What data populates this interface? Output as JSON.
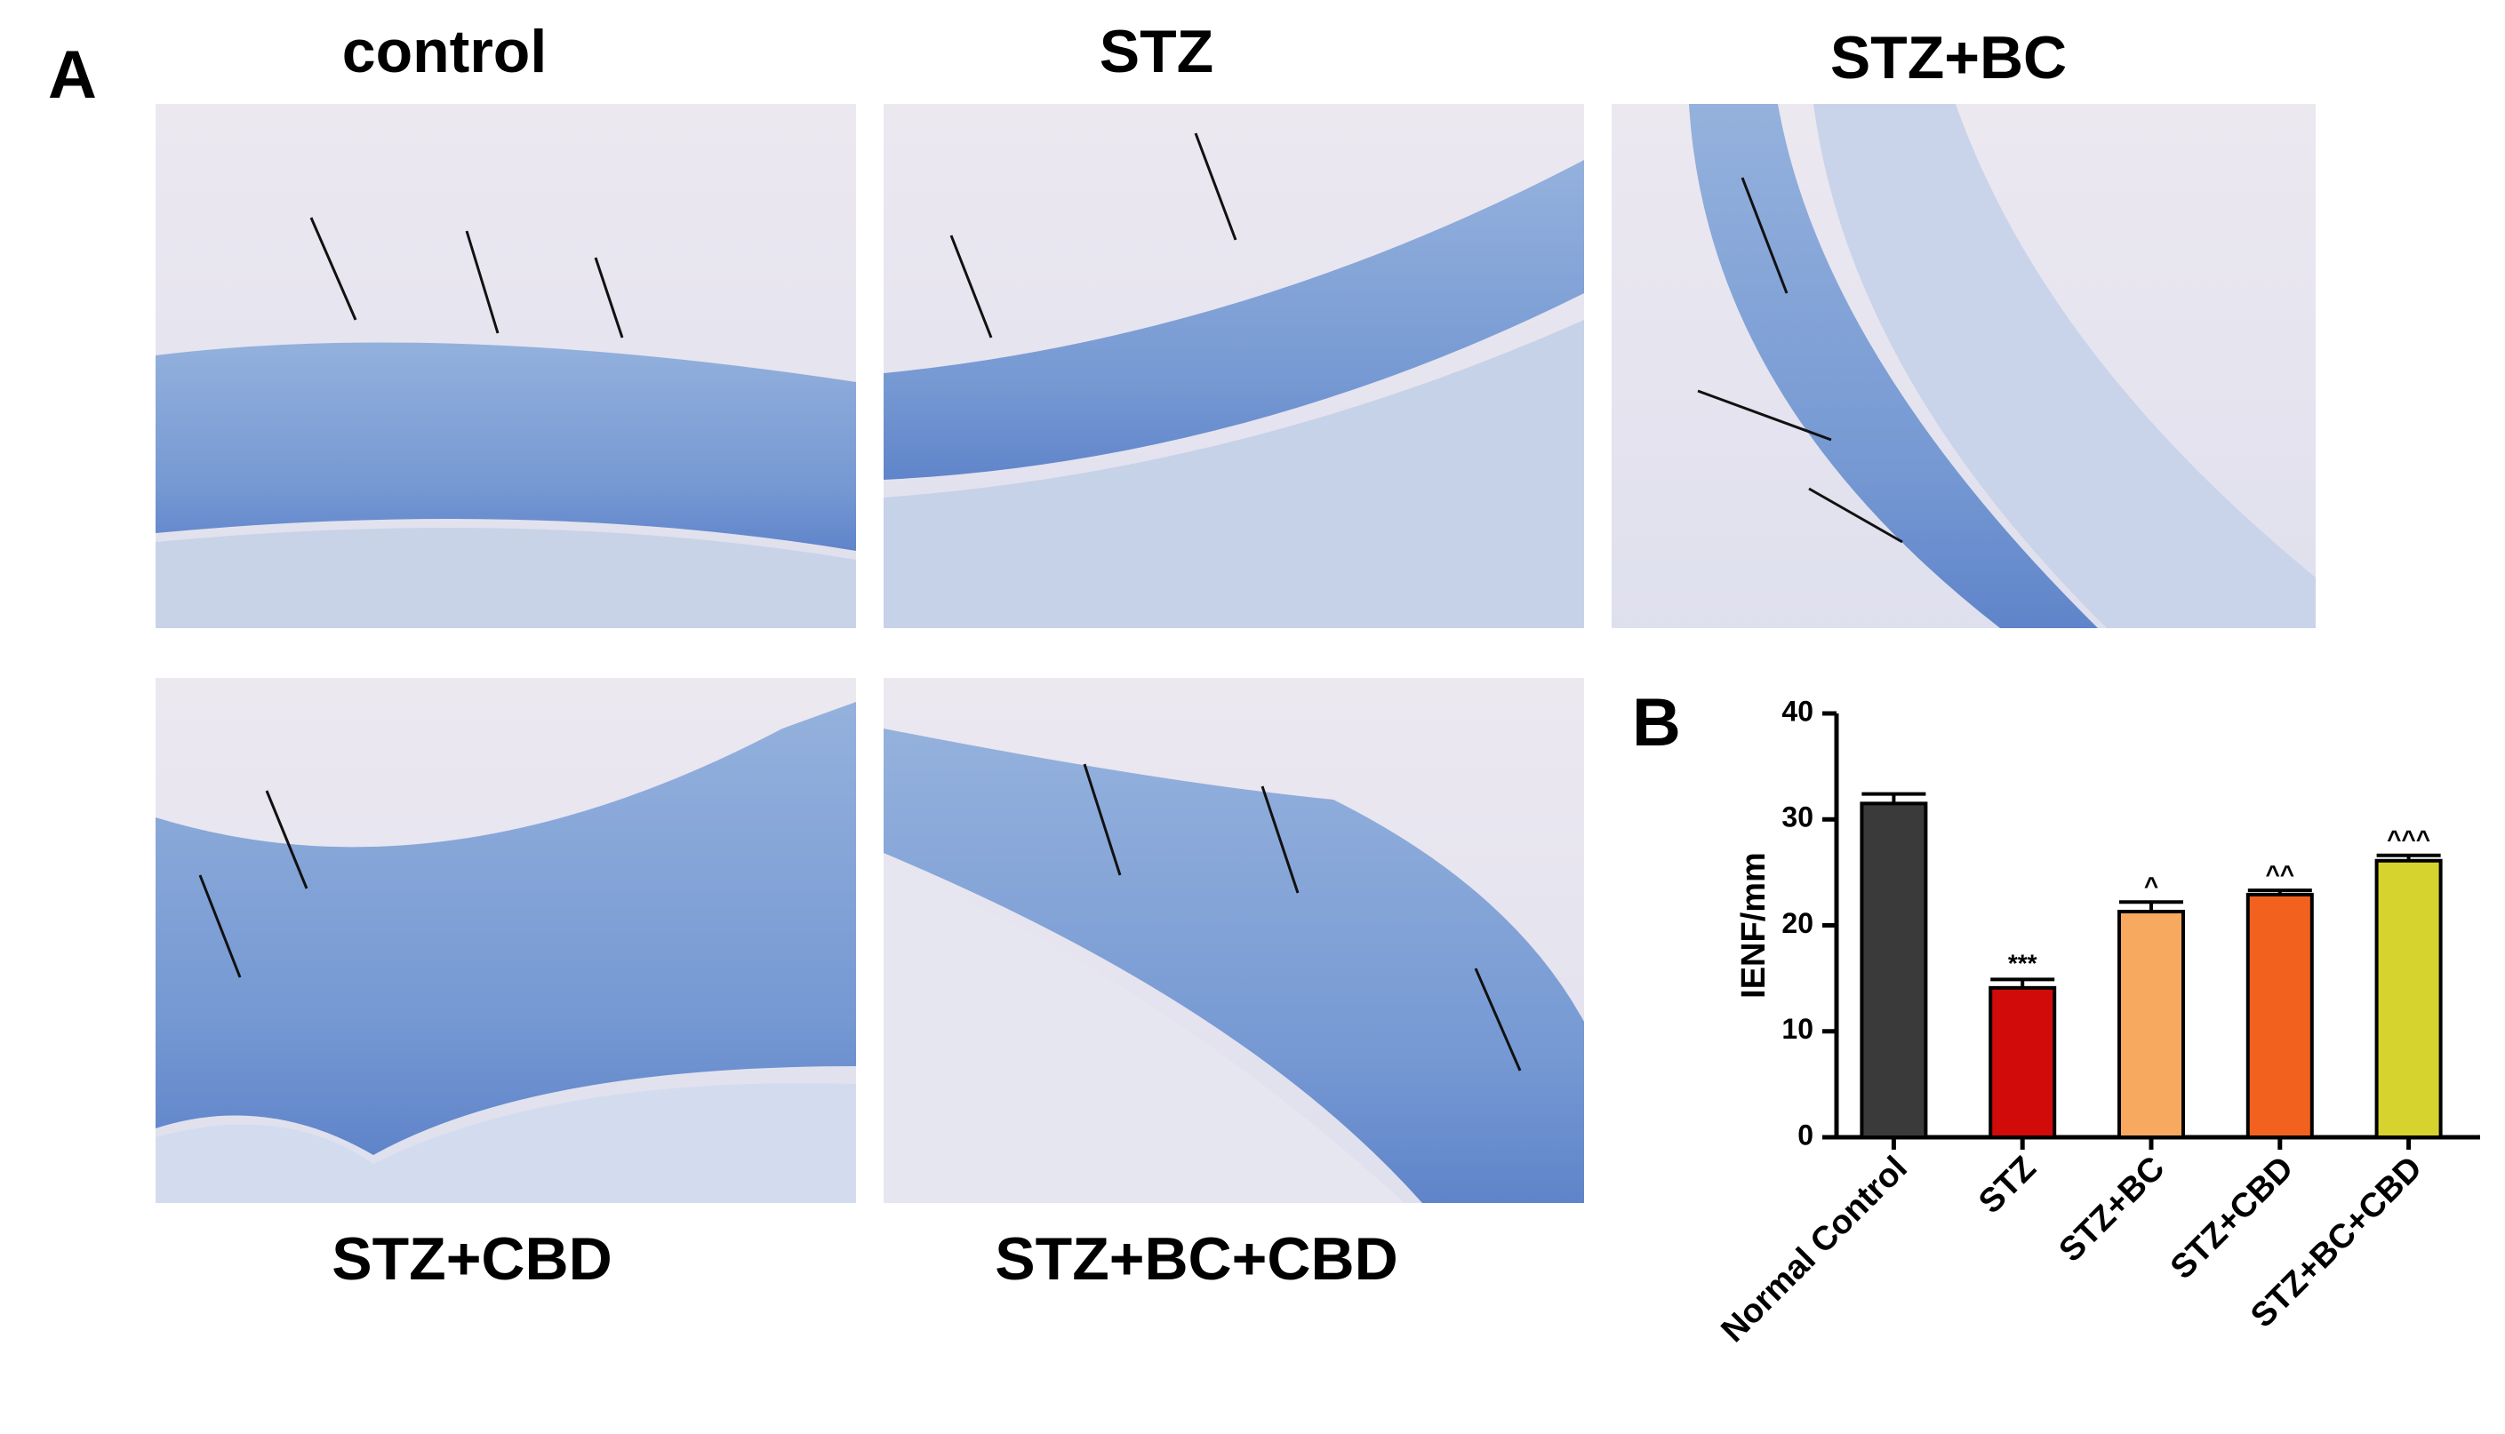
{
  "figure": {
    "panel_a_label": "A",
    "panel_b_label": "B",
    "image_titles": [
      "control",
      "STZ",
      "STZ+BC",
      "STZ+CBD",
      "STZ+BC+CBD"
    ]
  },
  "chart_data": {
    "type": "bar",
    "ylabel": "IENF/mm",
    "categories": [
      "Normal Control",
      "STZ",
      "STZ+BC",
      "STZ+CBD",
      "STZ+BC+CBD"
    ],
    "values": [
      31.5,
      14.1,
      21.3,
      22.9,
      26.1
    ],
    "errors": [
      0.9,
      0.8,
      0.9,
      0.4,
      0.5
    ],
    "significance": [
      null,
      "***",
      "^",
      "^^",
      "^^^"
    ],
    "colors": [
      "#3a3a3a",
      "#d10a0a",
      "#f7a960",
      "#f2621e",
      "#d6d22e"
    ],
    "ylim": [
      0,
      40
    ],
    "yticks": [
      0,
      10,
      20,
      30,
      40
    ]
  }
}
